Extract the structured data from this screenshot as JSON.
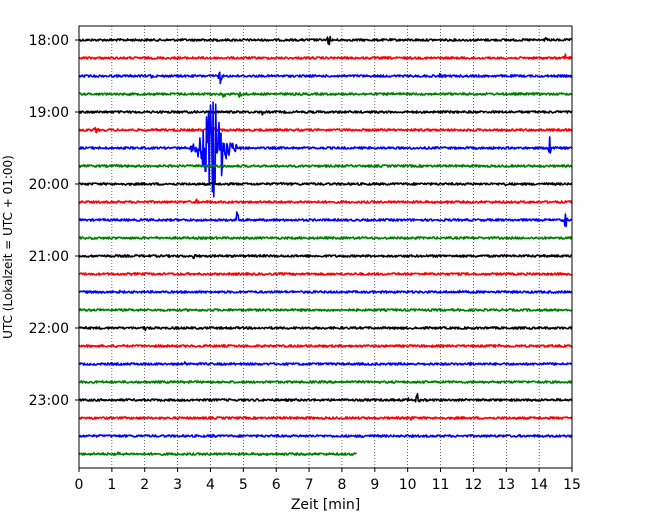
{
  "chart_data": {
    "type": "line",
    "title": "",
    "xlabel": "Zeit  [min]",
    "ylabel": "UTC (Lokalzeit = UTC + 01:00)",
    "xlim": [
      0,
      15
    ],
    "x_ticks": [
      0,
      1,
      2,
      3,
      4,
      5,
      6,
      7,
      8,
      9,
      10,
      11,
      12,
      13,
      14,
      15
    ],
    "grid": "vertical dotted",
    "trace_interval_min": 15,
    "y_tick_labels": [
      "18:00",
      "19:00",
      "20:00",
      "21:00",
      "22:00",
      "23:00"
    ],
    "colors": [
      "#000000",
      "#ff0000",
      "#0000ff",
      "#008000"
    ],
    "series": [
      {
        "start": "18:00",
        "color": "#000000",
        "end_min": 15,
        "events": [
          {
            "t": 7.6,
            "amp": 0.45
          },
          {
            "t": 3.8,
            "amp": 0.15
          },
          {
            "t": 14.2,
            "amp": 0.15
          }
        ]
      },
      {
        "start": "18:15",
        "color": "#ff0000",
        "end_min": 15,
        "events": [
          {
            "t": 14.8,
            "amp": 0.3
          },
          {
            "t": 12.5,
            "amp": 0.12
          }
        ]
      },
      {
        "start": "18:30",
        "color": "#0000ff",
        "end_min": 15,
        "events": [
          {
            "t": 4.3,
            "amp": 0.55
          },
          {
            "t": 2.2,
            "amp": 0.12
          },
          {
            "t": 11.0,
            "amp": 0.12
          }
        ]
      },
      {
        "start": "18:45",
        "color": "#008000",
        "end_min": 15,
        "events": [
          {
            "t": 4.9,
            "amp": 0.45
          },
          {
            "t": 4.4,
            "amp": 0.2
          }
        ]
      },
      {
        "start": "19:00",
        "color": "#000000",
        "end_min": 15,
        "events": [
          {
            "t": 5.6,
            "amp": 0.15
          }
        ]
      },
      {
        "start": "19:15",
        "color": "#ff0000",
        "end_min": 15,
        "events": [
          {
            "t": 0.5,
            "amp": 0.2
          },
          {
            "t": 4.1,
            "amp": 0.15
          }
        ]
      },
      {
        "start": "19:30",
        "color": "#0000ff",
        "end_min": 15,
        "events": [
          {
            "t": 4.1,
            "amp": 2.4,
            "quake": true
          },
          {
            "t": 14.3,
            "amp": 0.9
          }
        ]
      },
      {
        "start": "19:45",
        "color": "#008000",
        "end_min": 15,
        "events": []
      },
      {
        "start": "20:00",
        "color": "#000000",
        "end_min": 15,
        "events": [
          {
            "t": 6.2,
            "amp": 0.12
          },
          {
            "t": 13.0,
            "amp": 0.12
          }
        ]
      },
      {
        "start": "20:15",
        "color": "#ff0000",
        "end_min": 15,
        "events": [
          {
            "t": 3.6,
            "amp": 0.2
          },
          {
            "t": 11.2,
            "amp": 0.12
          }
        ]
      },
      {
        "start": "20:30",
        "color": "#0000ff",
        "end_min": 15,
        "events": [
          {
            "t": 4.8,
            "amp": 0.9
          },
          {
            "t": 14.8,
            "amp": 0.45
          }
        ]
      },
      {
        "start": "20:45",
        "color": "#008000",
        "end_min": 15,
        "events": []
      },
      {
        "start": "21:00",
        "color": "#000000",
        "end_min": 15,
        "events": [
          {
            "t": 3.5,
            "amp": 0.12
          }
        ]
      },
      {
        "start": "21:15",
        "color": "#ff0000",
        "end_min": 15,
        "events": []
      },
      {
        "start": "21:30",
        "color": "#0000ff",
        "end_min": 15,
        "events": [
          {
            "t": 1.2,
            "amp": 0.15
          },
          {
            "t": 11.6,
            "amp": 0.12
          }
        ]
      },
      {
        "start": "21:45",
        "color": "#008000",
        "end_min": 15,
        "events": [
          {
            "t": 11.5,
            "amp": 0.15
          }
        ]
      },
      {
        "start": "22:00",
        "color": "#000000",
        "end_min": 15,
        "events": [
          {
            "t": 2.0,
            "amp": 0.12
          },
          {
            "t": 10.2,
            "amp": 0.12
          }
        ]
      },
      {
        "start": "22:15",
        "color": "#ff0000",
        "end_min": 15,
        "events": [
          {
            "t": 12.8,
            "amp": 0.12
          }
        ]
      },
      {
        "start": "22:30",
        "color": "#0000ff",
        "end_min": 15,
        "events": [
          {
            "t": 3.2,
            "amp": 0.15
          },
          {
            "t": 11.9,
            "amp": 0.12
          }
        ]
      },
      {
        "start": "22:45",
        "color": "#008000",
        "end_min": 15,
        "events": []
      },
      {
        "start": "23:00",
        "color": "#000000",
        "end_min": 15,
        "events": [
          {
            "t": 10.3,
            "amp": 0.55
          },
          {
            "t": 10.0,
            "amp": 0.2
          }
        ]
      },
      {
        "start": "23:15",
        "color": "#ff0000",
        "end_min": 15,
        "events": [
          {
            "t": 10.1,
            "amp": 0.12
          }
        ]
      },
      {
        "start": "23:30",
        "color": "#0000ff",
        "end_min": 15,
        "events": [
          {
            "t": 4.1,
            "amp": 0.12
          },
          {
            "t": 8.6,
            "amp": 0.12
          }
        ]
      },
      {
        "start": "23:45",
        "color": "#008000",
        "end_min": 8.45,
        "events": [
          {
            "t": 1.2,
            "amp": 0.15
          }
        ]
      }
    ]
  }
}
